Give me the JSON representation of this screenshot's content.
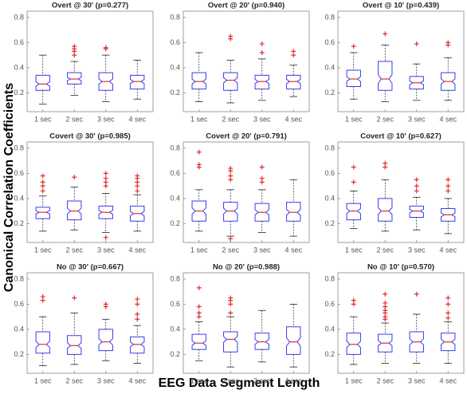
{
  "ylabel": "Canonical  Correlation Coefficients",
  "xlabel": "EEG Data Segment Length",
  "chart_data": [
    {
      "type": "box",
      "title": "Overt @ 30' (p=0.277)",
      "categories": [
        "1 sec",
        "2 sec",
        "3 sec",
        "4 sec"
      ],
      "ylim": [
        0.05,
        0.85
      ],
      "yticks": [
        0.2,
        0.4,
        0.6,
        0.8
      ],
      "color": "#3a3af0",
      "median_color": "#e03030",
      "outlier_color": "#e03030",
      "boxes": [
        {
          "min": 0.11,
          "q1": 0.22,
          "median": 0.27,
          "q3": 0.34,
          "max": 0.5,
          "outliers": []
        },
        {
          "min": 0.18,
          "q1": 0.27,
          "median": 0.31,
          "q3": 0.36,
          "max": 0.45,
          "outliers": [
            0.5,
            0.53,
            0.55,
            0.57
          ]
        },
        {
          "min": 0.13,
          "q1": 0.22,
          "median": 0.29,
          "q3": 0.36,
          "max": 0.5,
          "outliers": [
            0.55,
            0.56
          ]
        },
        {
          "min": 0.15,
          "q1": 0.23,
          "median": 0.29,
          "q3": 0.34,
          "max": 0.46,
          "outliers": []
        }
      ]
    },
    {
      "type": "box",
      "title": "Overt @ 20' (p=0.940)",
      "categories": [
        "1 sec",
        "2 sec",
        "3 sec",
        "4 sec"
      ],
      "ylim": [
        0.05,
        0.85
      ],
      "yticks": [
        0.2,
        0.4,
        0.6,
        0.8
      ],
      "color": "#3a3af0",
      "median_color": "#e03030",
      "outlier_color": "#e03030",
      "boxes": [
        {
          "min": 0.13,
          "q1": 0.23,
          "median": 0.29,
          "q3": 0.36,
          "max": 0.52,
          "outliers": []
        },
        {
          "min": 0.12,
          "q1": 0.22,
          "median": 0.3,
          "q3": 0.36,
          "max": 0.46,
          "outliers": [
            0.63,
            0.65
          ]
        },
        {
          "min": 0.14,
          "q1": 0.23,
          "median": 0.29,
          "q3": 0.34,
          "max": 0.47,
          "outliers": [
            0.52,
            0.59
          ]
        },
        {
          "min": 0.17,
          "q1": 0.23,
          "median": 0.29,
          "q3": 0.34,
          "max": 0.42,
          "outliers": [
            0.5,
            0.53
          ]
        }
      ]
    },
    {
      "type": "box",
      "title": "Overt @ 10' (p=0.439)",
      "categories": [
        "1 sec",
        "2 sec",
        "3 sec",
        "4 sec"
      ],
      "ylim": [
        0.05,
        0.85
      ],
      "yticks": [
        0.2,
        0.4,
        0.6,
        0.8
      ],
      "color": "#3a3af0",
      "median_color": "#e03030",
      "outlier_color": "#e03030",
      "boxes": [
        {
          "min": 0.15,
          "q1": 0.25,
          "median": 0.31,
          "q3": 0.38,
          "max": 0.52,
          "outliers": [
            0.57
          ]
        },
        {
          "min": 0.13,
          "q1": 0.22,
          "median": 0.31,
          "q3": 0.45,
          "max": 0.58,
          "outliers": [
            0.67
          ]
        },
        {
          "min": 0.14,
          "q1": 0.23,
          "median": 0.28,
          "q3": 0.33,
          "max": 0.43,
          "outliers": [
            0.59
          ]
        },
        {
          "min": 0.14,
          "q1": 0.22,
          "median": 0.29,
          "q3": 0.36,
          "max": 0.48,
          "outliers": [
            0.58,
            0.6
          ]
        }
      ]
    },
    {
      "type": "box",
      "title": "Covert @ 30' (p=0.985)",
      "categories": [
        "1 sec",
        "2 sec",
        "3 sec",
        "4 sec"
      ],
      "ylim": [
        0.05,
        0.85
      ],
      "yticks": [
        0.2,
        0.4,
        0.6,
        0.8
      ],
      "color": "#3a3af0",
      "median_color": "#e03030",
      "outlier_color": "#e03030",
      "boxes": [
        {
          "min": 0.14,
          "q1": 0.24,
          "median": 0.29,
          "q3": 0.33,
          "max": 0.42,
          "outliers": [
            0.46,
            0.5,
            0.53,
            0.58
          ]
        },
        {
          "min": 0.15,
          "q1": 0.23,
          "median": 0.3,
          "q3": 0.38,
          "max": 0.49,
          "outliers": [
            0.57
          ]
        },
        {
          "min": 0.13,
          "q1": 0.24,
          "median": 0.29,
          "q3": 0.34,
          "max": 0.44,
          "outliers": [
            0.09,
            0.5,
            0.53,
            0.56,
            0.6
          ]
        },
        {
          "min": 0.14,
          "q1": 0.22,
          "median": 0.28,
          "q3": 0.34,
          "max": 0.43,
          "outliers": [
            0.46,
            0.5,
            0.53,
            0.56,
            0.58
          ]
        }
      ]
    },
    {
      "type": "box",
      "title": "Covert @ 20' (p=0.791)",
      "categories": [
        "1 sec",
        "2 sec",
        "3 sec",
        "4 sec"
      ],
      "ylim": [
        0.05,
        0.85
      ],
      "yticks": [
        0.2,
        0.4,
        0.6,
        0.8
      ],
      "color": "#3a3af0",
      "median_color": "#e03030",
      "outlier_color": "#e03030",
      "boxes": [
        {
          "min": 0.14,
          "q1": 0.22,
          "median": 0.3,
          "q3": 0.38,
          "max": 0.47,
          "outliers": [
            0.65,
            0.67,
            0.77
          ]
        },
        {
          "min": 0.1,
          "q1": 0.22,
          "median": 0.3,
          "q3": 0.37,
          "max": 0.47,
          "outliers": [
            0.08,
            0.55,
            0.58,
            0.62,
            0.64
          ]
        },
        {
          "min": 0.13,
          "q1": 0.22,
          "median": 0.29,
          "q3": 0.36,
          "max": 0.47,
          "outliers": [
            0.53,
            0.56,
            0.65
          ]
        },
        {
          "min": 0.1,
          "q1": 0.22,
          "median": 0.29,
          "q3": 0.37,
          "max": 0.55,
          "outliers": []
        }
      ]
    },
    {
      "type": "box",
      "title": "Covert @ 10' (p=0.627)",
      "categories": [
        "1 sec",
        "2 sec",
        "3 sec",
        "4 sec"
      ],
      "ylim": [
        0.05,
        0.85
      ],
      "yticks": [
        0.2,
        0.4,
        0.6,
        0.8
      ],
      "color": "#3a3af0",
      "median_color": "#e03030",
      "outlier_color": "#e03030",
      "boxes": [
        {
          "min": 0.16,
          "q1": 0.23,
          "median": 0.3,
          "q3": 0.36,
          "max": 0.46,
          "outliers": [
            0.53,
            0.65
          ]
        },
        {
          "min": 0.14,
          "q1": 0.22,
          "median": 0.3,
          "q3": 0.4,
          "max": 0.55,
          "outliers": [
            0.65,
            0.68
          ]
        },
        {
          "min": 0.15,
          "q1": 0.25,
          "median": 0.3,
          "q3": 0.34,
          "max": 0.41,
          "outliers": [
            0.46,
            0.5,
            0.55
          ]
        },
        {
          "min": 0.12,
          "q1": 0.22,
          "median": 0.27,
          "q3": 0.32,
          "max": 0.4,
          "outliers": [
            0.46,
            0.5,
            0.55
          ]
        }
      ]
    },
    {
      "type": "box",
      "title": "No @ 30' (p=0.667)",
      "categories": [
        "1 sec",
        "2 sec",
        "3 sec",
        "4 sec"
      ],
      "ylim": [
        0.05,
        0.85
      ],
      "yticks": [
        0.2,
        0.4,
        0.6,
        0.8
      ],
      "color": "#3a3af0",
      "median_color": "#e03030",
      "outlier_color": "#e03030",
      "boxes": [
        {
          "min": 0.11,
          "q1": 0.21,
          "median": 0.28,
          "q3": 0.38,
          "max": 0.5,
          "outliers": [
            0.63,
            0.66
          ]
        },
        {
          "min": 0.12,
          "q1": 0.2,
          "median": 0.27,
          "q3": 0.35,
          "max": 0.53,
          "outliers": [
            0.65
          ]
        },
        {
          "min": 0.15,
          "q1": 0.23,
          "median": 0.3,
          "q3": 0.4,
          "max": 0.48,
          "outliers": [
            0.58,
            0.6
          ]
        },
        {
          "min": 0.13,
          "q1": 0.21,
          "median": 0.28,
          "q3": 0.34,
          "max": 0.43,
          "outliers": [
            0.48,
            0.52,
            0.6,
            0.64
          ]
        }
      ]
    },
    {
      "type": "box",
      "title": "No @ 20' (p=0.988)",
      "categories": [
        "1 sec",
        "2 sec",
        "3 sec",
        "4 sec"
      ],
      "ylim": [
        0.05,
        0.85
      ],
      "yticks": [
        0.2,
        0.4,
        0.6,
        0.8
      ],
      "color": "#3a3af0",
      "median_color": "#e03030",
      "outlier_color": "#e03030",
      "boxes": [
        {
          "min": 0.15,
          "q1": 0.24,
          "median": 0.29,
          "q3": 0.36,
          "max": 0.46,
          "outliers": [
            0.5,
            0.53,
            0.58,
            0.73
          ]
        },
        {
          "min": 0.1,
          "q1": 0.22,
          "median": 0.32,
          "q3": 0.38,
          "max": 0.5,
          "outliers": [
            0.53,
            0.6,
            0.63,
            0.65
          ]
        },
        {
          "min": 0.14,
          "q1": 0.24,
          "median": 0.3,
          "q3": 0.37,
          "max": 0.55,
          "outliers": []
        },
        {
          "min": 0.1,
          "q1": 0.2,
          "median": 0.3,
          "q3": 0.42,
          "max": 0.6,
          "outliers": []
        }
      ]
    },
    {
      "type": "box",
      "title": "No @ 10' (p=0.570)",
      "categories": [
        "1 sec",
        "2 sec",
        "3 sec",
        "4 sec"
      ],
      "ylim": [
        0.05,
        0.85
      ],
      "yticks": [
        0.2,
        0.4,
        0.6,
        0.8
      ],
      "color": "#3a3af0",
      "median_color": "#e03030",
      "outlier_color": "#e03030",
      "boxes": [
        {
          "min": 0.12,
          "q1": 0.2,
          "median": 0.28,
          "q3": 0.37,
          "max": 0.5,
          "outliers": [
            0.6,
            0.63
          ]
        },
        {
          "min": 0.13,
          "q1": 0.22,
          "median": 0.29,
          "q3": 0.36,
          "max": 0.45,
          "outliers": [
            0.48,
            0.5,
            0.53,
            0.55,
            0.58,
            0.61,
            0.68
          ]
        },
        {
          "min": 0.13,
          "q1": 0.22,
          "median": 0.3,
          "q3": 0.38,
          "max": 0.52,
          "outliers": [
            0.68
          ]
        },
        {
          "min": 0.13,
          "q1": 0.23,
          "median": 0.3,
          "q3": 0.37,
          "max": 0.46,
          "outliers": [
            0.49,
            0.53,
            0.6,
            0.65
          ]
        }
      ]
    }
  ]
}
